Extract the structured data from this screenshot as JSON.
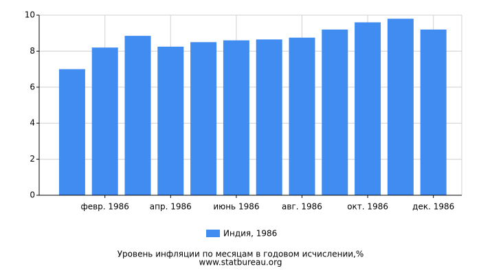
{
  "chart_data": {
    "type": "bar",
    "title": "Уровень инфляции по месяцам в годовом исчислении,%",
    "source": "www.statbureau.org",
    "categories": [
      null,
      "февр. 1986",
      null,
      "апр. 1986",
      null,
      "июнь 1986",
      null,
      "авг. 1986",
      null,
      "окт. 1986",
      null,
      "дек. 1986"
    ],
    "series": [
      {
        "name": "Индия, 1986",
        "color": "#418cf0",
        "values": [
          7.0,
          8.2,
          8.85,
          8.25,
          8.5,
          8.6,
          8.65,
          8.75,
          9.2,
          9.6,
          9.8,
          9.2
        ]
      }
    ],
    "ylim": [
      0,
      10
    ],
    "yticks": [
      0,
      2,
      4,
      6,
      8,
      10
    ],
    "grid": true
  }
}
